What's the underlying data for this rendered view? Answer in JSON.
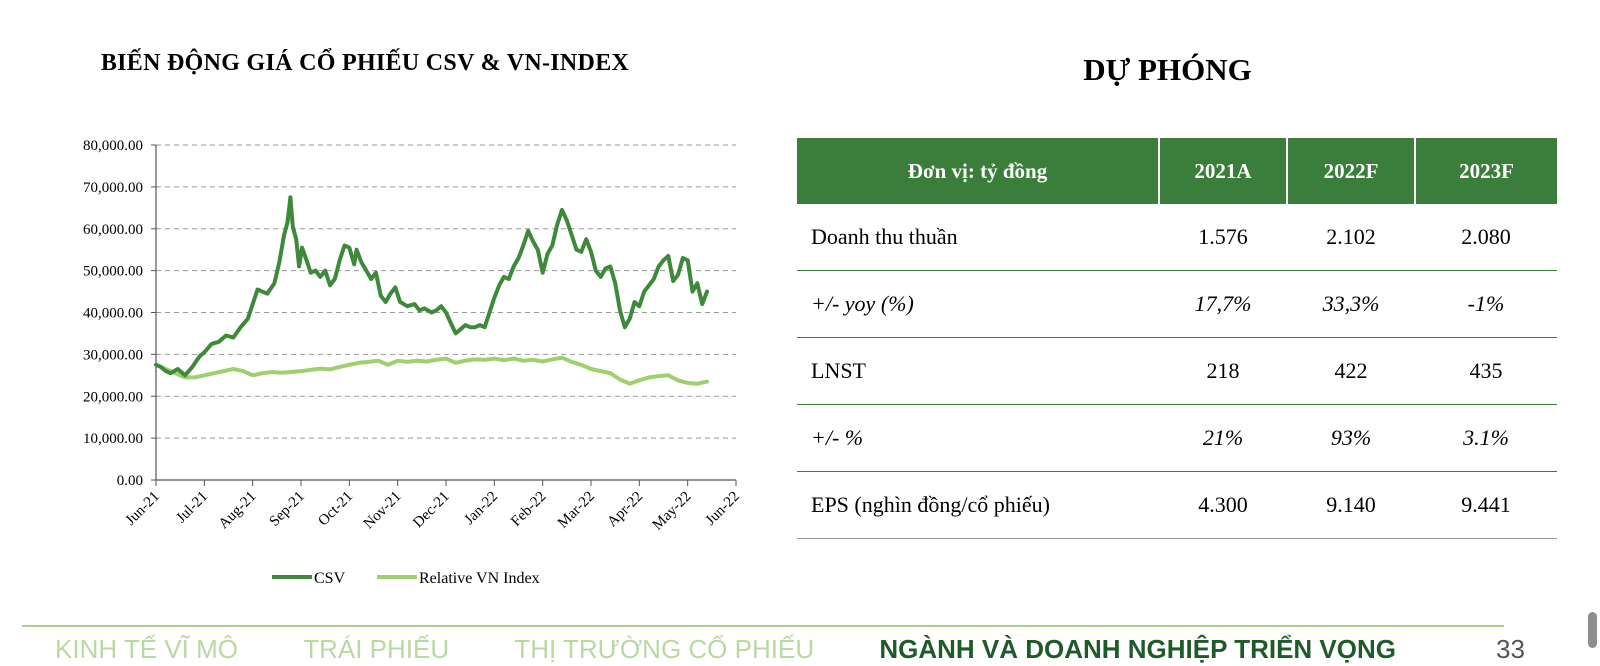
{
  "chart": {
    "title": "BIẾN ĐỘNG GIÁ CỔ PHIẾU CSV & VN-INDEX"
  },
  "chart_data": {
    "type": "line",
    "title": "BIẾN ĐỘNG GIÁ CỔ PHIẾU CSV & VN-INDEX",
    "xlabel": "",
    "ylabel": "",
    "ylim": [
      0,
      80000
    ],
    "y_ticks": [
      "80,000.00",
      "70,000.00",
      "60,000.00",
      "50,000.00",
      "40,000.00",
      "30,000.00",
      "20,000.00",
      "10,000.00",
      "0.00"
    ],
    "x_ticks": [
      "Jun-21",
      "Jul-21",
      "Aug-21",
      "Sep-21",
      "Oct-21",
      "Nov-21",
      "Dec-21",
      "Jan-22",
      "Feb-22",
      "Mar-22",
      "Apr-22",
      "May-22",
      "Jun-22"
    ],
    "grid": "horizontal dashed",
    "legend_position": "bottom",
    "series": [
      {
        "name": "CSV",
        "color": "#3e8a3a",
        "points": [
          [
            0,
            27500
          ],
          [
            0.1,
            27000
          ],
          [
            0.2,
            26000
          ],
          [
            0.3,
            25500
          ],
          [
            0.45,
            26500
          ],
          [
            0.6,
            25000
          ],
          [
            0.75,
            27000
          ],
          [
            0.9,
            29500
          ],
          [
            1.0,
            30500
          ],
          [
            1.15,
            32500
          ],
          [
            1.3,
            33000
          ],
          [
            1.45,
            34500
          ],
          [
            1.6,
            34000
          ],
          [
            1.75,
            36500
          ],
          [
            1.9,
            38500
          ],
          [
            2.0,
            42000
          ],
          [
            2.1,
            45500
          ],
          [
            2.2,
            45000
          ],
          [
            2.3,
            44500
          ],
          [
            2.45,
            47000
          ],
          [
            2.55,
            52000
          ],
          [
            2.65,
            58500
          ],
          [
            2.72,
            61500
          ],
          [
            2.78,
            67500
          ],
          [
            2.83,
            60500
          ],
          [
            2.9,
            57500
          ],
          [
            2.96,
            51000
          ],
          [
            3.02,
            55500
          ],
          [
            3.1,
            53000
          ],
          [
            3.2,
            49500
          ],
          [
            3.3,
            50000
          ],
          [
            3.4,
            48500
          ],
          [
            3.5,
            50000
          ],
          [
            3.6,
            46500
          ],
          [
            3.7,
            48000
          ],
          [
            3.8,
            52500
          ],
          [
            3.9,
            56000
          ],
          [
            4.0,
            55500
          ],
          [
            4.1,
            51500
          ],
          [
            4.15,
            55000
          ],
          [
            4.25,
            52000
          ],
          [
            4.35,
            50000
          ],
          [
            4.45,
            48000
          ],
          [
            4.55,
            49500
          ],
          [
            4.65,
            44000
          ],
          [
            4.75,
            42500
          ],
          [
            4.85,
            44500
          ],
          [
            4.95,
            46000
          ],
          [
            5.05,
            42500
          ],
          [
            5.2,
            41500
          ],
          [
            5.35,
            42000
          ],
          [
            5.45,
            40500
          ],
          [
            5.55,
            41000
          ],
          [
            5.7,
            40000
          ],
          [
            5.8,
            40500
          ],
          [
            5.9,
            41500
          ],
          [
            6.0,
            40000
          ],
          [
            6.1,
            37500
          ],
          [
            6.2,
            35000
          ],
          [
            6.3,
            36000
          ],
          [
            6.4,
            37000
          ],
          [
            6.5,
            36500
          ],
          [
            6.6,
            36500
          ],
          [
            6.7,
            37000
          ],
          [
            6.8,
            36500
          ],
          [
            6.9,
            40000
          ],
          [
            7.0,
            43500
          ],
          [
            7.1,
            46500
          ],
          [
            7.2,
            48500
          ],
          [
            7.3,
            48000
          ],
          [
            7.4,
            51000
          ],
          [
            7.5,
            53000
          ],
          [
            7.6,
            56000
          ],
          [
            7.7,
            59500
          ],
          [
            7.8,
            57000
          ],
          [
            7.9,
            55000
          ],
          [
            8.0,
            49500
          ],
          [
            8.1,
            54000
          ],
          [
            8.2,
            56000
          ],
          [
            8.3,
            61000
          ],
          [
            8.4,
            64500
          ],
          [
            8.5,
            62000
          ],
          [
            8.6,
            58500
          ],
          [
            8.7,
            55000
          ],
          [
            8.8,
            54500
          ],
          [
            8.9,
            57500
          ],
          [
            9.0,
            54500
          ],
          [
            9.1,
            50000
          ],
          [
            9.2,
            48500
          ],
          [
            9.3,
            50500
          ],
          [
            9.4,
            51000
          ],
          [
            9.5,
            47000
          ],
          [
            9.6,
            40500
          ],
          [
            9.7,
            36500
          ],
          [
            9.8,
            38500
          ],
          [
            9.9,
            42500
          ],
          [
            10.0,
            41500
          ],
          [
            10.1,
            45000
          ],
          [
            10.2,
            46500
          ],
          [
            10.3,
            48000
          ],
          [
            10.4,
            51000
          ],
          [
            10.5,
            52500
          ],
          [
            10.6,
            53500
          ],
          [
            10.7,
            47500
          ],
          [
            10.8,
            49000
          ],
          [
            10.9,
            53000
          ],
          [
            11.0,
            52500
          ],
          [
            11.1,
            45000
          ],
          [
            11.2,
            47000
          ],
          [
            11.3,
            42000
          ],
          [
            11.4,
            45000
          ]
        ]
      },
      {
        "name": "Relative VN Index",
        "color": "#9ed06e",
        "points": [
          [
            0,
            27500
          ],
          [
            0.2,
            26500
          ],
          [
            0.4,
            25500
          ],
          [
            0.6,
            24500
          ],
          [
            0.8,
            24500
          ],
          [
            1.0,
            25000
          ],
          [
            1.2,
            25500
          ],
          [
            1.4,
            26000
          ],
          [
            1.6,
            26500
          ],
          [
            1.8,
            26000
          ],
          [
            2.0,
            25000
          ],
          [
            2.2,
            25500
          ],
          [
            2.4,
            25800
          ],
          [
            2.6,
            25600
          ],
          [
            2.8,
            25800
          ],
          [
            3.0,
            26000
          ],
          [
            3.2,
            26300
          ],
          [
            3.4,
            26600
          ],
          [
            3.6,
            26400
          ],
          [
            3.8,
            27000
          ],
          [
            4.0,
            27500
          ],
          [
            4.2,
            28000
          ],
          [
            4.4,
            28200
          ],
          [
            4.6,
            28500
          ],
          [
            4.8,
            27500
          ],
          [
            5.0,
            28500
          ],
          [
            5.2,
            28200
          ],
          [
            5.4,
            28500
          ],
          [
            5.6,
            28300
          ],
          [
            5.8,
            28700
          ],
          [
            6.0,
            29000
          ],
          [
            6.2,
            28000
          ],
          [
            6.4,
            28500
          ],
          [
            6.6,
            28800
          ],
          [
            6.8,
            28700
          ],
          [
            7.0,
            29000
          ],
          [
            7.2,
            28600
          ],
          [
            7.4,
            29000
          ],
          [
            7.6,
            28500
          ],
          [
            7.8,
            28700
          ],
          [
            8.0,
            28300
          ],
          [
            8.2,
            28800
          ],
          [
            8.4,
            29200
          ],
          [
            8.6,
            28200
          ],
          [
            8.8,
            27500
          ],
          [
            9.0,
            26500
          ],
          [
            9.2,
            26000
          ],
          [
            9.4,
            25500
          ],
          [
            9.6,
            24000
          ],
          [
            9.8,
            23000
          ],
          [
            10.0,
            23800
          ],
          [
            10.2,
            24500
          ],
          [
            10.4,
            24800
          ],
          [
            10.6,
            25000
          ],
          [
            10.8,
            23800
          ],
          [
            11.0,
            23200
          ],
          [
            11.2,
            23000
          ],
          [
            11.4,
            23500
          ]
        ]
      }
    ]
  },
  "forecast": {
    "title": "DỰ PHÓNG",
    "headers": [
      "Đơn vị: tỷ đồng",
      "2021A",
      "2022F",
      "2023F"
    ],
    "rows": [
      {
        "label": "Doanh thu thuần",
        "values": [
          "1.576",
          "2.102",
          "2.080"
        ]
      },
      {
        "label": "+/-  yoy (%)",
        "values": [
          "17,7%",
          "33,3%",
          "-1%"
        ]
      },
      {
        "label": "LNST",
        "values": [
          "218",
          "422",
          "435"
        ]
      },
      {
        "label": "+/- %",
        "values": [
          "21%",
          "93%",
          "3.1%"
        ]
      },
      {
        "label": "EPS (nghìn đồng/cổ phiếu)",
        "values": [
          "4.300",
          "9.140",
          "9.441"
        ]
      }
    ]
  },
  "footer": {
    "nav": [
      "KINH TẾ VĨ MÔ",
      "TRÁI PHIẾU",
      "THỊ TRƯỜNG CỔ PHIẾU",
      "NGÀNH VÀ DOANH NGHIỆP TRIỂN VỌNG"
    ],
    "active_index": 3,
    "page_number": "33"
  },
  "colors": {
    "accent_green": "#3b7d3a",
    "light_green": "#9ed06e"
  }
}
